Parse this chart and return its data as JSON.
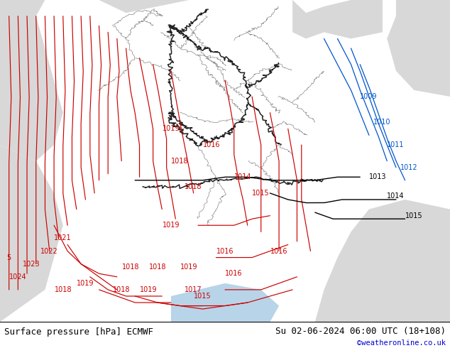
{
  "title_left": "Surface pressure [hPa] ECMWF",
  "title_right": "Su 02-06-2024 06:00 UTC (18+108)",
  "copyright": "©weatheronline.co.uk",
  "bg_color": "#c8f0a0",
  "gray_land_color": "#d8d8d8",
  "fig_width": 6.34,
  "fig_height": 4.9,
  "dpi": 100,
  "bottom_bar_color": "#ffffff",
  "bottom_bar_height": 0.075,
  "title_fontsize": 9,
  "copyright_color": "#0000cc",
  "red_color": "#cc0000",
  "blue_color": "#0055cc",
  "black_color": "#000000",
  "label_fontsize": 7,
  "border_color": "#888888",
  "dark_border_color": "#222222"
}
